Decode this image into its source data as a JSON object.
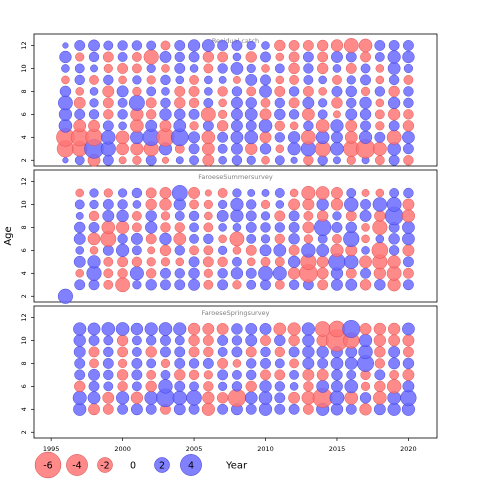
{
  "chart_data": {
    "type": "scatter",
    "subtype": "bubble residual plot",
    "ylabel": "Age",
    "xlabel": "Year",
    "x_ticks": [
      1995,
      2000,
      2005,
      2010,
      2015,
      2020
    ],
    "y_ticks": [
      2,
      4,
      6,
      8,
      10,
      12
    ],
    "colors": {
      "positive": "#6b6bff",
      "negative": "#ff7575",
      "positive_stroke": "#3333cc",
      "negative_stroke": "#d64545",
      "frame": "#000000",
      "title": "#808080"
    },
    "legend": {
      "items": [
        {
          "label": "-6",
          "value": -6
        },
        {
          "label": "-4",
          "value": -4
        },
        {
          "label": "-2",
          "value": -2
        },
        {
          "label": "0",
          "value": 0
        },
        {
          "label": "2",
          "value": 2
        },
        {
          "label": "4",
          "value": 4
        }
      ]
    },
    "panels": [
      {
        "title": "Residual catch",
        "xlim": [
          1993.8,
          2022
        ],
        "ylim": [
          1.5,
          13
        ],
        "years": [
          1996,
          1997,
          1998,
          1999,
          2000,
          2001,
          2002,
          2003,
          2004,
          2005,
          2006,
          2007,
          2008,
          2009,
          2010,
          2011,
          2012,
          2013,
          2014,
          2015,
          2016,
          2017,
          2018,
          2019,
          2020
        ],
        "ages": [
          2,
          3,
          4,
          5,
          6,
          7,
          8,
          9,
          10,
          11,
          12
        ],
        "residuals": [
          [
            0.3,
            0.8,
            -1.4,
            1.0,
            -0.5,
            -0.7,
            1.0,
            -0.4,
            0.5,
            0.8,
            -1.2,
            0.6,
            0.9,
            0.7,
            -0.6,
            0.8,
            0.4,
            -0.9,
            0.9,
            0.5,
            -0.7,
            0.5,
            -0.8,
            1.0,
            -0.9
          ],
          [
            -2.6,
            -2.1,
            3.4,
            2.0,
            -1.4,
            -1.5,
            -2.0,
            1.5,
            -0.8,
            1.0,
            -1.4,
            0.8,
            1.2,
            -1.3,
            1.1,
            -0.6,
            1.5,
            2.0,
            -2.2,
            1.6,
            -2.3,
            -3.3,
            -1.7,
            1.6,
            1.0
          ],
          [
            -3.0,
            -2.8,
            -2.6,
            1.8,
            -1.6,
            1.6,
            2.6,
            -2.9,
            2.7,
            1.2,
            -1.6,
            1.0,
            1.4,
            1.6,
            -1.2,
            0.9,
            1.3,
            -1.9,
            1.6,
            1.2,
            -1.4,
            1.5,
            1.0,
            -1.9,
            1.4
          ],
          [
            1.6,
            -1.4,
            -1.2,
            1.0,
            0.6,
            -1.6,
            1.2,
            -1.2,
            1.4,
            -0.7,
            1.0,
            -1.1,
            1.2,
            1.0,
            1.6,
            -0.9,
            -0.6,
            0.9,
            -1.6,
            1.5,
            -1.2,
            1.0,
            -0.7,
            1.0,
            -1.1
          ],
          [
            1.5,
            1.0,
            0.9,
            -0.9,
            0.9,
            -1.5,
            -0.9,
            1.3,
            1.1,
            1.0,
            -1.9,
            -0.7,
            1.2,
            1.4,
            -1.2,
            1.1,
            0.9,
            -1.4,
            0.8,
            -0.5,
            1.2,
            1.1,
            -0.8,
            -1.3,
            -0.9
          ],
          [
            1.9,
            -1.2,
            0.7,
            -1.0,
            0.8,
            2.2,
            -1.0,
            0.9,
            -1.1,
            -0.9,
            0.8,
            -0.6,
            1.2,
            1.1,
            -0.8,
            0.9,
            -1.0,
            1.2,
            0.7,
            -1.1,
            0.9,
            1.3,
            -0.6,
            1.3,
            0.9
          ],
          [
            1.1,
            -0.6,
            0.6,
            -1.2,
            1.2,
            -0.7,
            0.8,
            0.6,
            -1.0,
            -1.0,
            0.6,
            -0.9,
            0.9,
            -0.8,
            1.4,
            -1.0,
            0.9,
            -1.0,
            -0.6,
            1.0,
            1.1,
            -0.7,
            0.9,
            -1.1,
            0.9
          ],
          [
            -0.6,
            0.9,
            -0.8,
            0.9,
            -0.6,
            0.7,
            -0.7,
            0.9,
            0.6,
            -0.8,
            0.6,
            0.5,
            -0.5,
            1.2,
            1.0,
            -0.6,
            -0.8,
            0.8,
            0.6,
            -0.8,
            0.7,
            1.0,
            -0.6,
            0.9,
            -0.8
          ],
          [
            0.6,
            0.8,
            0.5,
            -0.7,
            -1.0,
            -0.8,
            0.7,
            -0.6,
            1.0,
            0.6,
            -0.8,
            0.9,
            1.4,
            0.7,
            -0.6,
            0.8,
            -1.1,
            0.9,
            -1.1,
            0.6,
            -1.0,
            0.8,
            -0.6,
            1.4,
            0.7
          ],
          [
            1.3,
            -0.7,
            0.9,
            -1.0,
            0.8,
            -0.8,
            -2.0,
            1.2,
            0.9,
            1.0,
            -1.1,
            -1.0,
            0.6,
            -1.1,
            1.0,
            -0.6,
            -1.0,
            1.0,
            -1.0,
            1.2,
            1.0,
            -1.0,
            0.8,
            1.5,
            1.3
          ],
          [
            0.3,
            1.0,
            1.2,
            0.8,
            0.9,
            0.9,
            0.8,
            -0.8,
            1.0,
            1.3,
            1.4,
            1.0,
            1.0,
            0.7,
            0.6,
            -1.1,
            -1.0,
            -1.0,
            -1.1,
            -1.3,
            -1.9,
            -1.6,
            1.0,
            1.0,
            1.0
          ]
        ]
      },
      {
        "title": "FaroeseSummersurvey",
        "xlim": [
          1993.8,
          2022
        ],
        "ylim": [
          1.5,
          13
        ],
        "years": [
          1996,
          1997,
          1998,
          1999,
          2000,
          2001,
          2002,
          2003,
          2004,
          2005,
          2006,
          2007,
          2008,
          2009,
          2010,
          2011,
          2012,
          2013,
          2014,
          2015,
          2016,
          2017,
          2018,
          2019,
          2020
        ],
        "ages": [
          2,
          3,
          4,
          5,
          6,
          7,
          8,
          9,
          10,
          11
        ],
        "residuals": [
          [
            2.0,
            null,
            null,
            null,
            null,
            null,
            null,
            null,
            null,
            null,
            null,
            null,
            null,
            null,
            null,
            null,
            null,
            null,
            null,
            null,
            null,
            null,
            null,
            null,
            null
          ],
          [
            null,
            1.0,
            1.0,
            -0.8,
            -1.9,
            0.7,
            1.1,
            1.0,
            1.0,
            1.2,
            -0.8,
            1.0,
            -0.7,
            0.8,
            1.0,
            -0.8,
            0.9,
            1.0,
            -1.0,
            1.2,
            1.2,
            -1.1,
            1.1,
            -1.5,
            1.0
          ],
          [
            null,
            -0.6,
            2.0,
            -0.8,
            -0.9,
            1.7,
            -0.9,
            1.0,
            0.9,
            1.1,
            -0.7,
            0.9,
            1.3,
            1.0,
            1.9,
            1.7,
            -1.3,
            -3.0,
            -1.2,
            1.3,
            -1.0,
            1.0,
            -1.3,
            -1.9,
            -1.0
          ],
          [
            null,
            1.2,
            1.5,
            -0.8,
            -1.0,
            -0.9,
            -0.7,
            -0.7,
            -0.6,
            1.0,
            -1.0,
            -0.9,
            0.8,
            -0.6,
            -0.8,
            -0.8,
            1.3,
            -2.3,
            -1.2,
            2.6,
            1.8,
            -1.4,
            -2.0,
            -1.5,
            1.0
          ],
          [
            null,
            0.6,
            -0.6,
            1.0,
            1.5,
            0.8,
            -0.5,
            -1.1,
            0.9,
            -0.8,
            -0.8,
            0.7,
            -0.6,
            -1.0,
            1.2,
            1.4,
            -1.0,
            1.8,
            1.4,
            -1.5,
            -1.2,
            0.6,
            -2.4,
            0.9,
            -1.2
          ],
          [
            null,
            1.2,
            -1.4,
            -2.2,
            0.9,
            1.2,
            -1.0,
            1.3,
            -1.4,
            0.8,
            0.9,
            -0.6,
            -1.9,
            0.8,
            0.7,
            -0.9,
            1.1,
            -0.7,
            0.8,
            -0.8,
            2.3,
            -0.6,
            0.6,
            1.1,
            1.4
          ],
          [
            null,
            1.1,
            1.0,
            -1.6,
            -1.5,
            -0.8,
            1.3,
            -0.9,
            -0.9,
            0.8,
            -0.8,
            0.6,
            0.6,
            1.0,
            0.9,
            0.9,
            1.0,
            -1.2,
            2.6,
            1.0,
            1.1,
            -0.6,
            -2.0,
            1.0,
            1.4
          ],
          [
            null,
            0.5,
            -0.9,
            1.2,
            1.3,
            -0.8,
            1.1,
            -0.7,
            0.8,
            0.9,
            -0.6,
            1.2,
            1.5,
            1.0,
            0.7,
            -1.0,
            1.0,
            -0.8,
            -1.1,
            0.7,
            -1.0,
            1.2,
            -1.1,
            3.0,
            -1.5
          ],
          [
            null,
            0.8,
            0.7,
            1.0,
            0.9,
            0.6,
            -1.1,
            -1.3,
            1.3,
            -0.8,
            -0.7,
            0.7,
            1.5,
            0.9,
            -0.7,
            0.6,
            -1.2,
            -1.2,
            1.3,
            -1.3,
            1.8,
            1.0,
            1.8,
            1.9,
            -1.2
          ],
          [
            null,
            -0.6,
            0.7,
            -0.7,
            0.7,
            0.9,
            -1.0,
            -1.2,
            2.2,
            -1.2,
            -0.4,
            -0.8,
            0.7,
            0.5,
            0.5,
            0.8,
            -0.6,
            -1.7,
            -1.6,
            -1.2,
            0.8,
            -0.5,
            -0.6,
            0.8,
            0.9
          ]
        ]
      },
      {
        "title": "FaroeseSpringsurvey",
        "xlim": [
          1993.8,
          2022
        ],
        "ylim": [
          1.5,
          13
        ],
        "years": [
          1997,
          1998,
          1999,
          2000,
          2001,
          2002,
          2003,
          2004,
          2005,
          2006,
          2007,
          2008,
          2009,
          2010,
          2011,
          2012,
          2013,
          2014,
          2015,
          2016,
          2017,
          2018,
          2019,
          2020
        ],
        "ages": [
          4,
          5,
          6,
          7,
          8,
          9,
          10,
          11
        ],
        "residuals": [
          [
            1.5,
            -1.2,
            -1.0,
            1.0,
            1.2,
            1.0,
            -1.0,
            1.2,
            1.0,
            -1.5,
            1.0,
            1.2,
            1.0,
            1.5,
            1.0,
            1.0,
            -1.0,
            1.5,
            1.3,
            1.0,
            -1.3,
            1.2,
            1.5,
            1.5
          ],
          [
            1.7,
            1.4,
            -1.2,
            1.5,
            -1.3,
            1.6,
            3.0,
            1.8,
            2.1,
            -1.3,
            -1.1,
            -2.9,
            1.4,
            1.6,
            1.0,
            -1.2,
            -1.6,
            -3.5,
            1.9,
            -1.6,
            1.1,
            -1.6,
            1.6,
            2.3
          ],
          [
            -1.1,
            1.0,
            0.8,
            -0.9,
            0.8,
            -1.1,
            1.8,
            1.0,
            0.8,
            -0.9,
            0.7,
            0.9,
            -1.1,
            1.3,
            0.9,
            0.6,
            -0.9,
            1.4,
            1.2,
            1.6,
            -0.7,
            -1.1,
            -1.8,
            1.2
          ],
          [
            1.0,
            1.2,
            0.9,
            -1.1,
            1.0,
            -0.8,
            0.8,
            -1.1,
            -0.9,
            -0.7,
            1.0,
            0.8,
            0.9,
            -1.0,
            -1.0,
            0.8,
            -1.2,
            -1.2,
            1.1,
            0.8,
            -0.9,
            1.0,
            -0.8,
            -1.2
          ],
          [
            1.0,
            -0.8,
            1.0,
            -0.7,
            1.0,
            0.8,
            -0.7,
            1.0,
            0.9,
            1.0,
            -1.0,
            -0.6,
            0.9,
            1.0,
            0.8,
            -0.8,
            1.2,
            1.0,
            1.4,
            1.4,
            2.5,
            -0.9,
            1.2,
            1.1
          ],
          [
            1.2,
            -1.0,
            0.9,
            -1.0,
            0.8,
            -1.1,
            1.0,
            1.0,
            -1.0,
            -0.9,
            0.8,
            1.0,
            -1.0,
            0.9,
            -0.9,
            1.0,
            1.3,
            1.3,
            1.2,
            1.2,
            1.8,
            -1.1,
            1.2,
            -1.0
          ],
          [
            1.3,
            1.0,
            0.8,
            -1.1,
            0.8,
            0.9,
            1.0,
            0.8,
            -1.1,
            -1.0,
            1.0,
            0.9,
            1.2,
            -1.0,
            1.1,
            -1.1,
            1.3,
            -1.3,
            -4.3,
            -2.3,
            1.5,
            -1.3,
            -1.2,
            -1.2
          ],
          [
            1.5,
            1.4,
            1.6,
            1.6,
            1.3,
            1.5,
            1.6,
            1.5,
            -1.3,
            -1.2,
            -1.2,
            1.1,
            1.2,
            1.2,
            -1.4,
            -1.5,
            1.5,
            -2.1,
            -2.4,
            2.8,
            -1.2,
            -1.3,
            -1.3,
            1.4
          ]
        ]
      }
    ]
  }
}
